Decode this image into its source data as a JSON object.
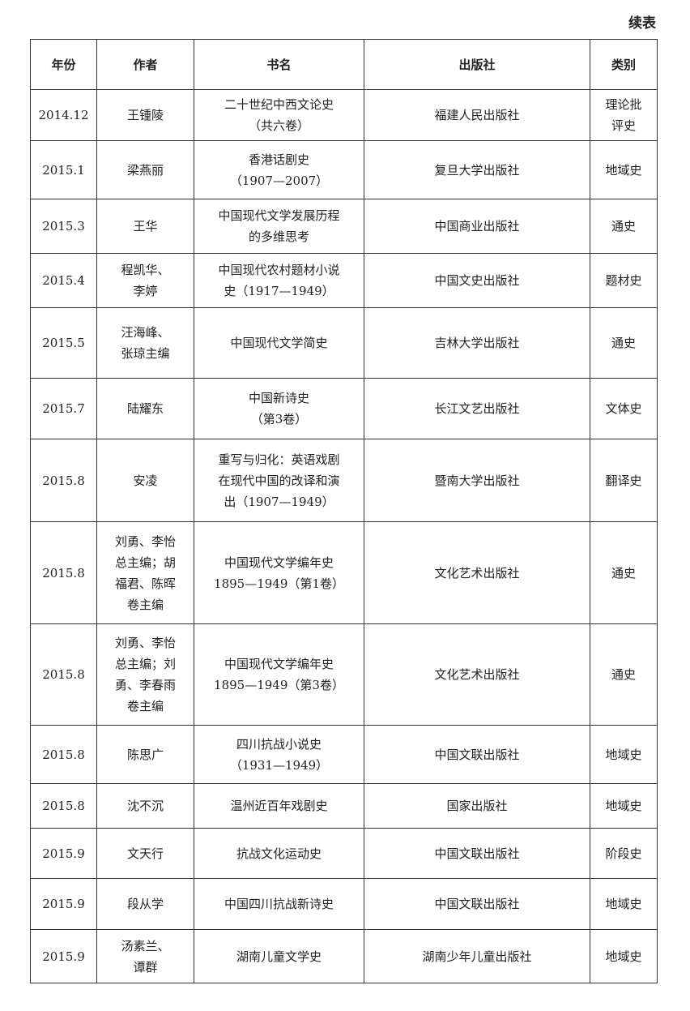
{
  "continued_label": "续表",
  "headers": [
    "年份",
    "作者",
    "书名",
    "出版社",
    "类别"
  ],
  "rows": [
    [
      "2014.12",
      "王锺陵",
      "二十世纪中西文论史\n（共六卷）",
      "福建人民出版社",
      "理论批\n评史"
    ],
    [
      "2015.1",
      "梁燕丽",
      "香港话剧史\n（1907—2007）",
      "复旦大学出版社",
      "地域史"
    ],
    [
      "2015.3",
      "王华",
      "中国现代文学发展历程\n的多维思考",
      "中国商业出版社",
      "通史"
    ],
    [
      "2015.4",
      "程凯华、\n李婷",
      "中国现代农村题材小说\n史（1917—1949）",
      "中国文史出版社",
      "题材史"
    ],
    [
      "2015.5",
      "汪海峰、\n张琼主编",
      "中国现代文学简史",
      "吉林大学出版社",
      "通史"
    ],
    [
      "2015.7",
      "陆耀东",
      "中国新诗史\n（第3卷）",
      "长江文艺出版社",
      "文体史"
    ],
    [
      "2015.8",
      "安凌",
      "重写与归化：英语戏剧\n在现代中国的改译和演\n出（1907—1949）",
      "暨南大学出版社",
      "翻译史"
    ],
    [
      "2015.8",
      "刘勇、李怡\n总主编；胡\n福君、陈晖\n卷主编",
      "中国现代文学编年史\n1895—1949（第1卷）",
      "文化艺术出版社",
      "通史"
    ],
    [
      "2015.8",
      "刘勇、李怡\n总主编；刘\n勇、李春雨\n卷主编",
      "中国现代文学编年史\n1895—1949（第3卷）",
      "文化艺术出版社",
      "通史"
    ],
    [
      "2015.8",
      "陈思广",
      "四川抗战小说史\n（1931—1949）",
      "中国文联出版社",
      "地域史"
    ],
    [
      "2015.8",
      "沈不沉",
      "温州近百年戏剧史",
      "国家出版社",
      "地域史"
    ],
    [
      "2015.9",
      "文天行",
      "抗战文化运动史",
      "中国文联出版社",
      "阶段史"
    ],
    [
      "2015.9",
      "段从学",
      "中国四川抗战新诗史",
      "中国文联出版社",
      "地域史"
    ],
    [
      "2015.9",
      "汤素兰、\n谭群",
      "湖南儿童文学史",
      "湖南少年儿童出版社",
      "地域史"
    ]
  ]
}
